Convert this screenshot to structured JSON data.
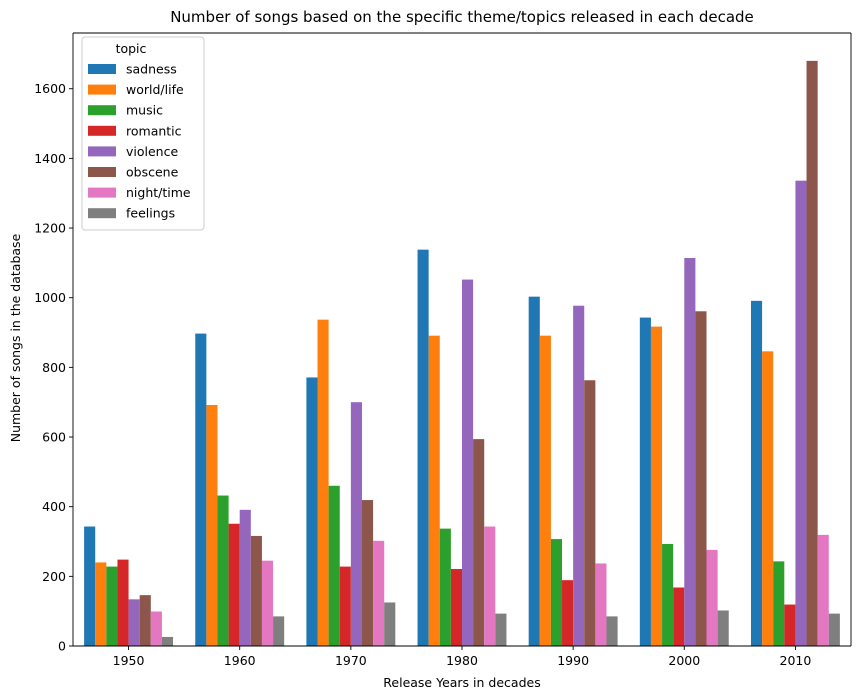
{
  "chart_data": {
    "type": "bar",
    "title": "Number of songs based on the specific theme/topics released in each decade",
    "xlabel": "Release Years in decades",
    "ylabel": "Number of songs in the database",
    "categories": [
      "1950",
      "1960",
      "1970",
      "1980",
      "1990",
      "2000",
      "2010"
    ],
    "ylim": [
      0,
      1760
    ],
    "yticks": [
      0,
      200,
      400,
      600,
      800,
      1000,
      1200,
      1400,
      1600
    ],
    "grid": false,
    "legend": {
      "title": "topic",
      "placement": "top-left"
    },
    "series": [
      {
        "name": "sadness",
        "color": "#1f77b4",
        "values": [
          343,
          897,
          771,
          1138,
          1003,
          943,
          991
        ]
      },
      {
        "name": "world/life",
        "color": "#ff7f0e",
        "values": [
          240,
          692,
          937,
          891,
          891,
          917,
          846
        ]
      },
      {
        "name": "music",
        "color": "#2ca02c",
        "values": [
          228,
          432,
          460,
          337,
          307,
          293,
          243
        ]
      },
      {
        "name": "romantic",
        "color": "#d62728",
        "values": [
          248,
          351,
          228,
          221,
          189,
          168,
          119
        ]
      },
      {
        "name": "violence",
        "color": "#9467bd",
        "values": [
          134,
          391,
          700,
          1052,
          977,
          1114,
          1336
        ]
      },
      {
        "name": "obscene",
        "color": "#8c564b",
        "values": [
          146,
          316,
          419,
          594,
          763,
          961,
          1680
        ]
      },
      {
        "name": "night/time",
        "color": "#e377c2",
        "values": [
          99,
          245,
          302,
          343,
          237,
          276,
          319
        ]
      },
      {
        "name": "feelings",
        "color": "#7f7f7f",
        "values": [
          26,
          85,
          125,
          93,
          85,
          102,
          93
        ]
      }
    ]
  }
}
